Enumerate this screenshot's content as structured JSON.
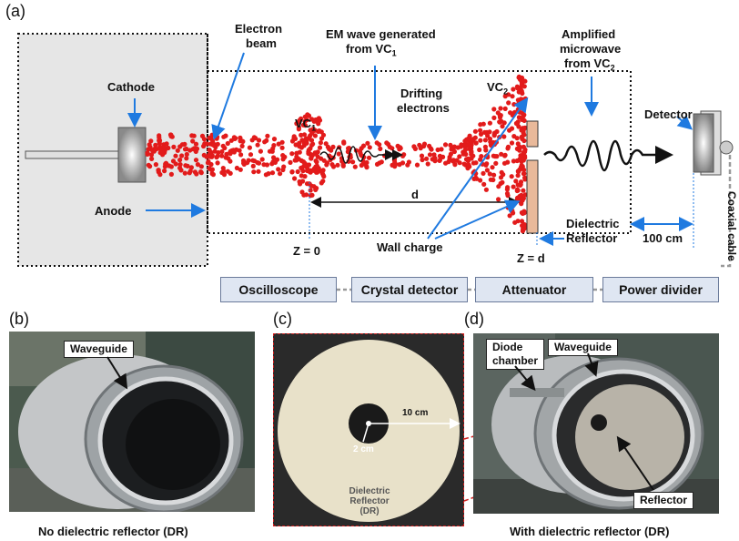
{
  "panel_a": {
    "letter": "(a)",
    "labels": {
      "cathode": "Cathode",
      "electron_beam_1": "Electron",
      "electron_beam_2": "beam",
      "em_wave_1": "EM wave generated",
      "em_wave_2": "from VC",
      "em_wave_sub": "1",
      "vc1": "VC",
      "vc1_sub": "1",
      "drifting_1": "Drifting",
      "drifting_2": "electrons",
      "vc2": "VC",
      "vc2_sub": "2",
      "amplified_1": "Amplified",
      "amplified_2": "microwave",
      "amplified_3": "from VC",
      "amplified_sub": "2",
      "detector": "Detector",
      "anode": "Anode",
      "d": "d",
      "z0": "Z = 0",
      "zd": "Z = d",
      "wall_charge": "Wall charge",
      "dielectric_1": "Dielectric",
      "dielectric_2": "Reflector",
      "distance": "100 cm",
      "coaxial": "Coaxial cable"
    },
    "chain": [
      "Oscilloscope",
      "Crystal detector",
      "Attenuator",
      "Power divider"
    ]
  },
  "panel_b": {
    "letter": "(b)",
    "callout": "Waveguide",
    "caption": "No dielectric reflector (DR)"
  },
  "panel_c": {
    "letter": "(c)",
    "dim_outer": "10 cm",
    "dim_inner": "2 cm",
    "label_1": "Dielectric",
    "label_2": "Reflector",
    "label_3": "(DR)"
  },
  "panel_d": {
    "letter": "(d)",
    "callout_diode_1": "Diode",
    "callout_diode_2": "chamber",
    "callout_waveguide": "Waveguide",
    "callout_reflector": "Reflector",
    "caption": "With dielectric reflector (DR)"
  },
  "colors": {
    "electron": "#e21b1b",
    "arrow": "#1f7ae0",
    "chain_box": "#dfe6f2",
    "chamber": "#e6e6e6",
    "reflector": "#e9b99a"
  }
}
